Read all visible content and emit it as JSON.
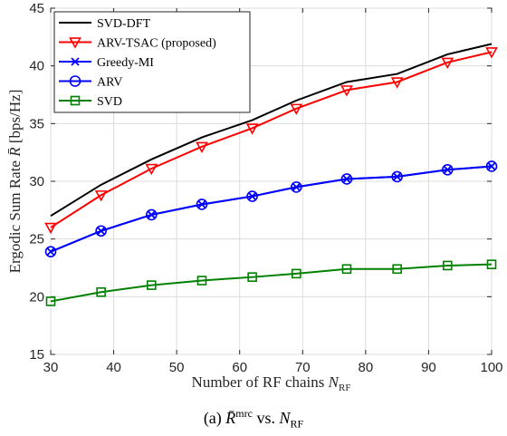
{
  "chart_data": {
    "type": "line",
    "xlabel": "Number of RF chains N_RF",
    "ylabel": "Ergodic Sum Rate R̄ [bps/Hz]",
    "xlim": [
      30,
      100
    ],
    "ylim": [
      15,
      45
    ],
    "xticks": [
      30,
      40,
      50,
      60,
      70,
      80,
      90,
      100
    ],
    "yticks": [
      15,
      20,
      25,
      30,
      35,
      40,
      45
    ],
    "grid": true,
    "legend_position": "top-left",
    "x": [
      30,
      38,
      46,
      54,
      62,
      69,
      77,
      85,
      93,
      100
    ],
    "series": [
      {
        "name": "SVD-DFT",
        "color": "#000000",
        "marker": "none",
        "values": [
          27.0,
          29.7,
          31.9,
          33.8,
          35.3,
          37.0,
          38.6,
          39.3,
          41.0,
          41.9
        ]
      },
      {
        "name": "ARV-TSAC (proposed)",
        "color": "#ff0000",
        "marker": "triangle-down",
        "values": [
          26.0,
          28.8,
          31.1,
          33.0,
          34.6,
          36.3,
          37.9,
          38.6,
          40.3,
          41.2
        ]
      },
      {
        "name": "Greedy-MI",
        "color": "#0000ff",
        "marker": "x",
        "values": [
          23.9,
          25.7,
          27.1,
          28.0,
          28.7,
          29.5,
          30.2,
          30.4,
          31.0,
          31.3
        ]
      },
      {
        "name": "ARV",
        "color": "#0000ff",
        "marker": "circle",
        "values": [
          23.9,
          25.7,
          27.1,
          28.0,
          28.7,
          29.5,
          30.2,
          30.4,
          31.0,
          31.3
        ]
      },
      {
        "name": "SVD",
        "color": "#008000",
        "marker": "square",
        "values": [
          19.6,
          20.4,
          21.0,
          21.4,
          21.7,
          22.0,
          22.4,
          22.4,
          22.7,
          22.8
        ]
      }
    ]
  },
  "caption": "(a) R̄^mrc vs. N_RF"
}
